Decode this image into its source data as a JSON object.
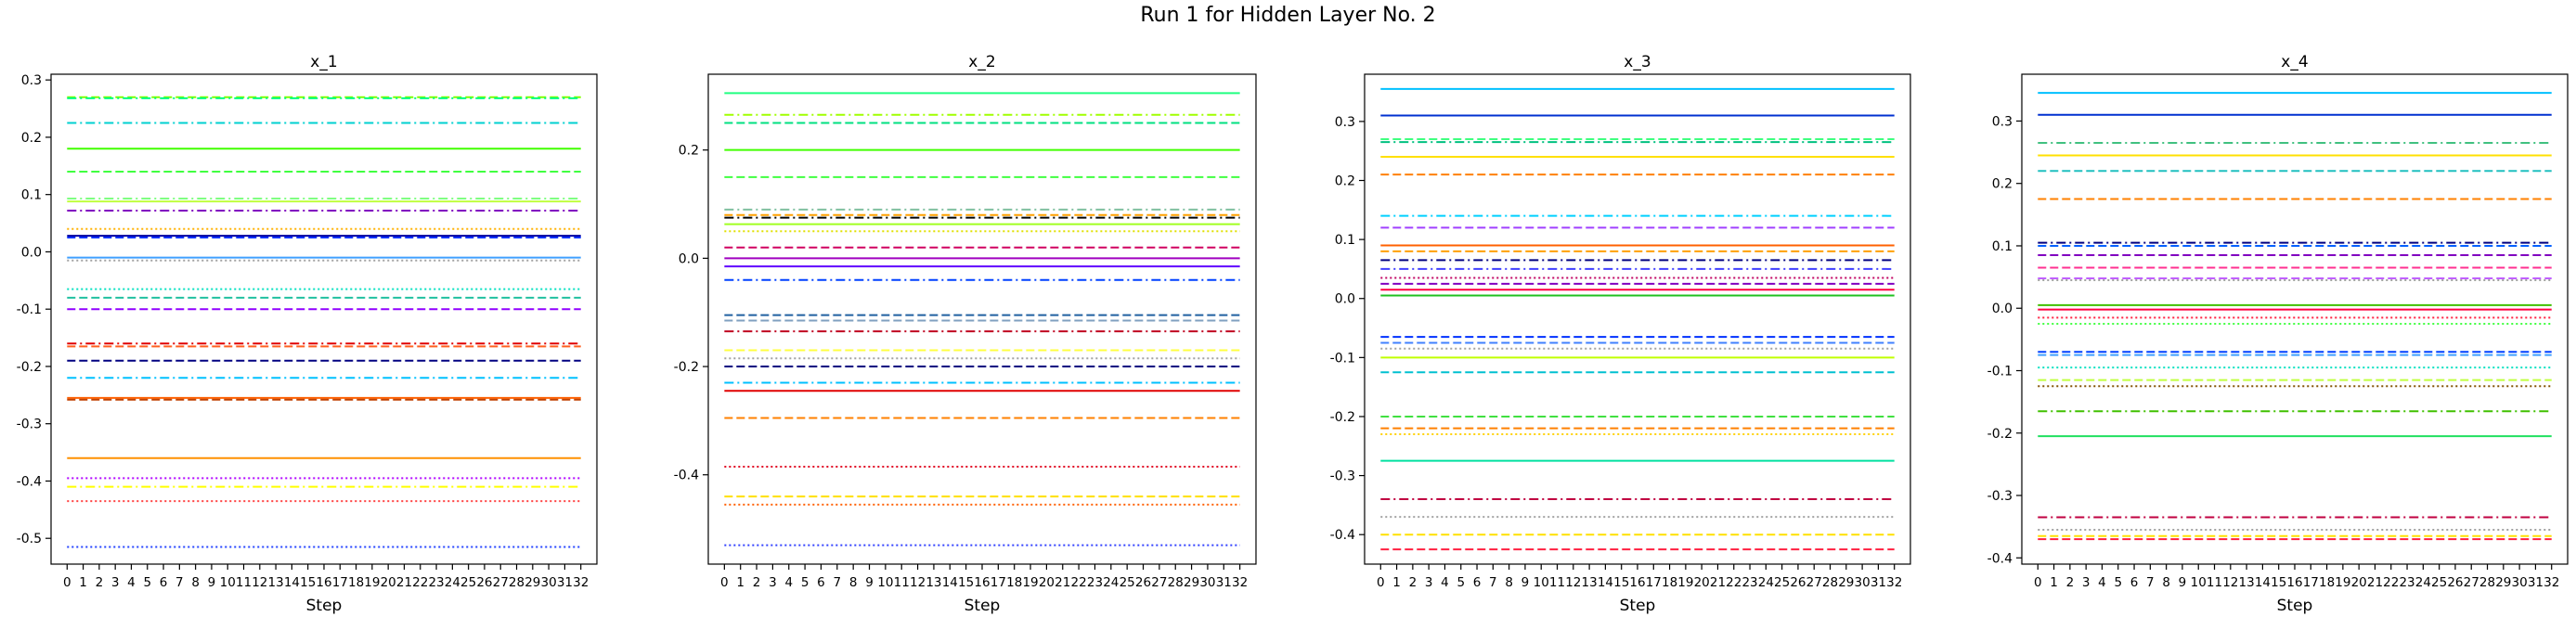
{
  "figure": {
    "title": "Run 1 for Hidden Layer No. 2"
  },
  "chart_data": [
    {
      "type": "line",
      "title": "x_1",
      "xlabel": "Step",
      "ylabel": "",
      "x": [
        0,
        1,
        2,
        3,
        4,
        5,
        6,
        7,
        8,
        9,
        10,
        11,
        12,
        13,
        14,
        15,
        16,
        17,
        18,
        19,
        20,
        21,
        22,
        23,
        24,
        25,
        26,
        27,
        28,
        29,
        30,
        31,
        32
      ],
      "yticks": [
        -0.5,
        -0.4,
        -0.3,
        -0.2,
        -0.1,
        0.0,
        0.1,
        0.2,
        0.3
      ],
      "ylim": [
        -0.545,
        0.31
      ],
      "grid": false,
      "series": [
        {
          "value": 0.27,
          "color": "#80ff00",
          "dash": "dashed"
        },
        {
          "value": 0.268,
          "color": "#00ff80",
          "dash": "dashdot"
        },
        {
          "value": 0.225,
          "color": "#00d0d0",
          "dash": "dashdot"
        },
        {
          "value": 0.18,
          "color": "#40ff00",
          "dash": "solid"
        },
        {
          "value": 0.14,
          "color": "#40ff40",
          "dash": "dashed"
        },
        {
          "value": 0.093,
          "color": "#80ff80",
          "dash": "dashdot"
        },
        {
          "value": 0.088,
          "color": "#c0ff40",
          "dash": "solid"
        },
        {
          "value": 0.072,
          "color": "#8000c0",
          "dash": "dashdot"
        },
        {
          "value": 0.04,
          "color": "#ffb000",
          "dash": "dotted"
        },
        {
          "value": 0.028,
          "color": "#0000a0",
          "dash": "solid"
        },
        {
          "value": 0.025,
          "color": "#0030ff",
          "dash": "dashed"
        },
        {
          "value": -0.01,
          "color": "#40a0ff",
          "dash": "solid"
        },
        {
          "value": -0.015,
          "color": "#a0a0a0",
          "dash": "dotted"
        },
        {
          "value": -0.065,
          "color": "#00e0c0",
          "dash": "dotted"
        },
        {
          "value": -0.08,
          "color": "#20c0a0",
          "dash": "dashed"
        },
        {
          "value": -0.1,
          "color": "#9000ff",
          "dash": "dashed"
        },
        {
          "value": -0.16,
          "color": "#e00000",
          "dash": "dashdot"
        },
        {
          "value": -0.165,
          "color": "#ff6020",
          "dash": "dashed"
        },
        {
          "value": -0.19,
          "color": "#000080",
          "dash": "dashed"
        },
        {
          "value": -0.22,
          "color": "#00c0ff",
          "dash": "dashdot"
        },
        {
          "value": -0.255,
          "color": "#ff6000",
          "dash": "solid"
        },
        {
          "value": -0.258,
          "color": "#c04000",
          "dash": "dashed"
        },
        {
          "value": -0.36,
          "color": "#ff9000",
          "dash": "solid"
        },
        {
          "value": -0.395,
          "color": "#b000ff",
          "dash": "dotted"
        },
        {
          "value": -0.41,
          "color": "#ffff00",
          "dash": "dashdot"
        },
        {
          "value": -0.435,
          "color": "#ff4040",
          "dash": "dotted"
        },
        {
          "value": -0.515,
          "color": "#2040ff",
          "dash": "dotted"
        }
      ]
    },
    {
      "type": "line",
      "title": "x_2",
      "xlabel": "Step",
      "ylabel": "",
      "x": [
        0,
        1,
        2,
        3,
        4,
        5,
        6,
        7,
        8,
        9,
        10,
        11,
        12,
        13,
        14,
        15,
        16,
        17,
        18,
        19,
        20,
        21,
        22,
        23,
        24,
        25,
        26,
        27,
        28,
        29,
        30,
        31,
        32
      ],
      "yticks": [
        -0.4,
        -0.2,
        0.0,
        0.2
      ],
      "ylim": [
        -0.565,
        0.34
      ],
      "grid": false,
      "series": [
        {
          "value": 0.305,
          "color": "#20ff80",
          "dash": "solid"
        },
        {
          "value": 0.265,
          "color": "#a0ff00",
          "dash": "dashdot"
        },
        {
          "value": 0.25,
          "color": "#00e080",
          "dash": "dashed"
        },
        {
          "value": 0.2,
          "color": "#40ff00",
          "dash": "solid"
        },
        {
          "value": 0.15,
          "color": "#40ff40",
          "dash": "dashed"
        },
        {
          "value": 0.09,
          "color": "#80c0a0",
          "dash": "dashdot"
        },
        {
          "value": 0.08,
          "color": "#ffa000",
          "dash": "dashed"
        },
        {
          "value": 0.075,
          "color": "#000000",
          "dash": "dashdot"
        },
        {
          "value": 0.063,
          "color": "#a0ff20",
          "dash": "solid"
        },
        {
          "value": 0.05,
          "color": "#e0e000",
          "dash": "dotted"
        },
        {
          "value": 0.02,
          "color": "#d00060",
          "dash": "dashed"
        },
        {
          "value": 0.0,
          "color": "#a000c0",
          "dash": "solid"
        },
        {
          "value": -0.015,
          "color": "#6000ff",
          "dash": "solid"
        },
        {
          "value": -0.04,
          "color": "#0040ff",
          "dash": "dashdot"
        },
        {
          "value": -0.105,
          "color": "#2060a0",
          "dash": "dashed"
        },
        {
          "value": -0.115,
          "color": "#80a0c0",
          "dash": "dashed"
        },
        {
          "value": -0.135,
          "color": "#c00020",
          "dash": "dashdot"
        },
        {
          "value": -0.17,
          "color": "#ffff40",
          "dash": "dashed"
        },
        {
          "value": -0.185,
          "color": "#a0a0a0",
          "dash": "dotted"
        },
        {
          "value": -0.2,
          "color": "#000080",
          "dash": "dashed"
        },
        {
          "value": -0.23,
          "color": "#00c0ff",
          "dash": "dashdot"
        },
        {
          "value": -0.245,
          "color": "#e00000",
          "dash": "solid"
        },
        {
          "value": -0.295,
          "color": "#ff8000",
          "dash": "dashed"
        },
        {
          "value": -0.385,
          "color": "#e00020",
          "dash": "dotted"
        },
        {
          "value": -0.44,
          "color": "#ffe000",
          "dash": "dashed"
        },
        {
          "value": -0.455,
          "color": "#ff6000",
          "dash": "dotted"
        },
        {
          "value": -0.53,
          "color": "#3040ff",
          "dash": "dotted"
        }
      ]
    },
    {
      "type": "line",
      "title": "x_3",
      "xlabel": "Step",
      "ylabel": "",
      "x": [
        0,
        1,
        2,
        3,
        4,
        5,
        6,
        7,
        8,
        9,
        10,
        11,
        12,
        13,
        14,
        15,
        16,
        17,
        18,
        19,
        20,
        21,
        22,
        23,
        24,
        25,
        26,
        27,
        28,
        29,
        30,
        31,
        32
      ],
      "yticks": [
        -0.4,
        -0.3,
        -0.2,
        -0.1,
        0.0,
        0.1,
        0.2,
        0.3
      ],
      "ylim": [
        -0.45,
        0.38
      ],
      "grid": false,
      "series": [
        {
          "value": 0.355,
          "color": "#00c0ff",
          "dash": "solid"
        },
        {
          "value": 0.31,
          "color": "#0030d0",
          "dash": "solid"
        },
        {
          "value": 0.27,
          "color": "#40ff80",
          "dash": "dashed"
        },
        {
          "value": 0.265,
          "color": "#00c080",
          "dash": "dashdot"
        },
        {
          "value": 0.24,
          "color": "#ffe000",
          "dash": "solid"
        },
        {
          "value": 0.21,
          "color": "#ff8000",
          "dash": "dashed"
        },
        {
          "value": 0.14,
          "color": "#00d0ff",
          "dash": "dashdot"
        },
        {
          "value": 0.12,
          "color": "#a040ff",
          "dash": "dashed"
        },
        {
          "value": 0.09,
          "color": "#ff6000",
          "dash": "solid"
        },
        {
          "value": 0.08,
          "color": "#ffa000",
          "dash": "dashed"
        },
        {
          "value": 0.065,
          "color": "#000080",
          "dash": "dashdot"
        },
        {
          "value": 0.05,
          "color": "#4040ff",
          "dash": "dashdot"
        },
        {
          "value": 0.035,
          "color": "#c00060",
          "dash": "dotted"
        },
        {
          "value": 0.025,
          "color": "#8000c0",
          "dash": "dashed"
        },
        {
          "value": 0.015,
          "color": "#ff0040",
          "dash": "solid"
        },
        {
          "value": 0.005,
          "color": "#20c020",
          "dash": "solid"
        },
        {
          "value": -0.065,
          "color": "#0030ff",
          "dash": "dashed"
        },
        {
          "value": -0.075,
          "color": "#4080ff",
          "dash": "dashed"
        },
        {
          "value": -0.085,
          "color": "#a0a0a0",
          "dash": "dotted"
        },
        {
          "value": -0.1,
          "color": "#c0ff00",
          "dash": "solid"
        },
        {
          "value": -0.125,
          "color": "#00c0d0",
          "dash": "dashed"
        },
        {
          "value": -0.2,
          "color": "#40e040",
          "dash": "dashed"
        },
        {
          "value": -0.22,
          "color": "#ff8000",
          "dash": "dashed"
        },
        {
          "value": -0.23,
          "color": "#ffd000",
          "dash": "dotted"
        },
        {
          "value": -0.275,
          "color": "#00e0a0",
          "dash": "solid"
        },
        {
          "value": -0.34,
          "color": "#c00040",
          "dash": "dashdot"
        },
        {
          "value": -0.37,
          "color": "#a0a0a0",
          "dash": "dotted"
        },
        {
          "value": -0.4,
          "color": "#ffe000",
          "dash": "dashed"
        },
        {
          "value": -0.425,
          "color": "#ff2040",
          "dash": "dashed"
        }
      ]
    },
    {
      "type": "line",
      "title": "x_4",
      "xlabel": "Step",
      "ylabel": "",
      "x": [
        0,
        1,
        2,
        3,
        4,
        5,
        6,
        7,
        8,
        9,
        10,
        11,
        12,
        13,
        14,
        15,
        16,
        17,
        18,
        19,
        20,
        21,
        22,
        23,
        24,
        25,
        26,
        27,
        28,
        29,
        30,
        31,
        32
      ],
      "yticks": [
        -0.4,
        -0.3,
        -0.2,
        -0.1,
        0.0,
        0.1,
        0.2,
        0.3
      ],
      "ylim": [
        -0.41,
        0.375
      ],
      "grid": false,
      "series": [
        {
          "value": 0.345,
          "color": "#00c0ff",
          "dash": "solid"
        },
        {
          "value": 0.31,
          "color": "#0030d0",
          "dash": "solid"
        },
        {
          "value": 0.265,
          "color": "#40c080",
          "dash": "dashdot"
        },
        {
          "value": 0.245,
          "color": "#ffe000",
          "dash": "solid"
        },
        {
          "value": 0.22,
          "color": "#20c0c0",
          "dash": "dashed"
        },
        {
          "value": 0.175,
          "color": "#ff8000",
          "dash": "dashed"
        },
        {
          "value": 0.105,
          "color": "#000080",
          "dash": "dashdot"
        },
        {
          "value": 0.1,
          "color": "#0060ff",
          "dash": "dashed"
        },
        {
          "value": 0.085,
          "color": "#8000c0",
          "dash": "dashed"
        },
        {
          "value": 0.065,
          "color": "#ff3090",
          "dash": "dashed"
        },
        {
          "value": 0.048,
          "color": "#c060ff",
          "dash": "dashed"
        },
        {
          "value": 0.045,
          "color": "#a0a0a0",
          "dash": "dotted"
        },
        {
          "value": 0.005,
          "color": "#40c000",
          "dash": "solid"
        },
        {
          "value": -0.002,
          "color": "#ff0040",
          "dash": "solid"
        },
        {
          "value": -0.015,
          "color": "#ff2040",
          "dash": "dotted"
        },
        {
          "value": -0.025,
          "color": "#40ff40",
          "dash": "dotted"
        },
        {
          "value": -0.07,
          "color": "#0040ff",
          "dash": "dashed"
        },
        {
          "value": -0.075,
          "color": "#40a0ff",
          "dash": "dashed"
        },
        {
          "value": -0.095,
          "color": "#00e0c0",
          "dash": "dotted"
        },
        {
          "value": -0.115,
          "color": "#c0ff40",
          "dash": "dashed"
        },
        {
          "value": -0.125,
          "color": "#805000",
          "dash": "dotted"
        },
        {
          "value": -0.165,
          "color": "#40c000",
          "dash": "dashdot"
        },
        {
          "value": -0.205,
          "color": "#20e060",
          "dash": "solid"
        },
        {
          "value": -0.335,
          "color": "#c00040",
          "dash": "dashdot"
        },
        {
          "value": -0.355,
          "color": "#a0a0a0",
          "dash": "dotted"
        },
        {
          "value": -0.365,
          "color": "#ffe000",
          "dash": "dashed"
        },
        {
          "value": -0.37,
          "color": "#ff2040",
          "dash": "dashed"
        }
      ]
    }
  ]
}
